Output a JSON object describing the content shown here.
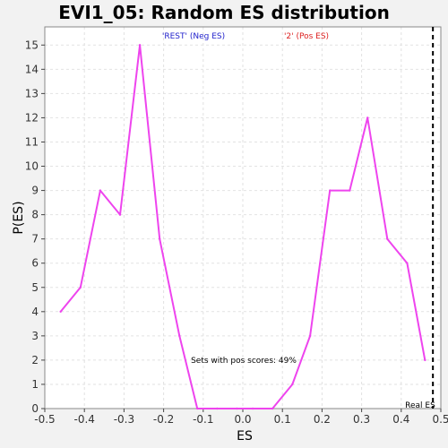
{
  "chart_data": {
    "type": "line",
    "title": "EVI1_05: Random ES distribution",
    "xlabel": "ES",
    "ylabel": "P(ES)",
    "xlim": [
      -0.5,
      0.5
    ],
    "ylim": [
      0,
      15.75
    ],
    "grid": true,
    "x_ticks": [
      "-0.5",
      "-0.4",
      "-0.3",
      "-0.2",
      "-0.1",
      "0.0",
      "0.1",
      "0.2",
      "0.3",
      "0.4",
      "0.5"
    ],
    "y_ticks": [
      "0",
      "1",
      "2",
      "3",
      "4",
      "5",
      "6",
      "7",
      "8",
      "9",
      "10",
      "11",
      "12",
      "13",
      "14",
      "15"
    ],
    "series": [
      {
        "color": "#ee44ee",
        "x": [
          -0.46,
          -0.41,
          -0.36,
          -0.31,
          -0.26,
          -0.21,
          -0.16,
          -0.115,
          -0.065,
          -0.015,
          0.025,
          0.075,
          0.125,
          0.17,
          0.22,
          0.27,
          0.315,
          0.365,
          0.415,
          0.46
        ],
        "y": [
          4,
          5,
          9,
          8,
          15,
          7,
          3,
          0,
          0,
          0,
          0,
          0,
          1,
          3,
          9,
          9,
          12,
          7,
          6,
          2
        ]
      }
    ],
    "legend": {
      "neg_label": "'REST' (Neg ES)",
      "neg_color": "#2222cc",
      "pos_label": "'2' (Pos ES)",
      "pos_color": "#dd2222"
    },
    "annotation": "Sets with pos scores: 49%",
    "real_es": {
      "label": "Real ES",
      "x": 0.48
    }
  }
}
